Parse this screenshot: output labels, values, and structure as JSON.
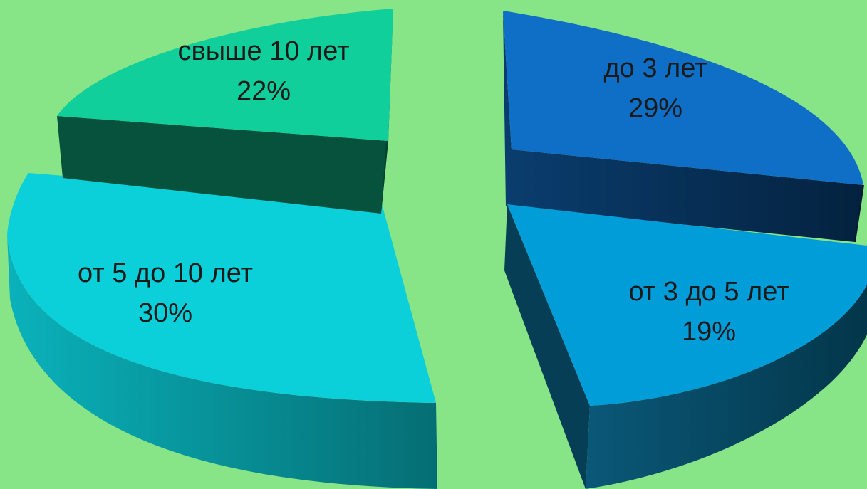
{
  "chart_data": {
    "type": "pie",
    "style": "3d-exploded",
    "title": "",
    "slices": [
      {
        "label": "до 3 лет",
        "value": 29,
        "value_label": "29%",
        "top_color": "#0f6fc6",
        "side_color": "#062c50"
      },
      {
        "label": "от 3 до 5 лет",
        "value": 19,
        "value_label": "19%",
        "top_color": "#009dd9",
        "side_color": "#05465e"
      },
      {
        "label": "от 5 до 10 лет",
        "value": 30,
        "value_label": "30%",
        "top_color": "#0bd0d9",
        "side_color": "#05898f"
      },
      {
        "label": "свыше 10 лет",
        "value": 22,
        "value_label": "22%",
        "top_color": "#10cf9b",
        "side_color": "#07523c"
      }
    ],
    "background_color": "#87e487"
  }
}
